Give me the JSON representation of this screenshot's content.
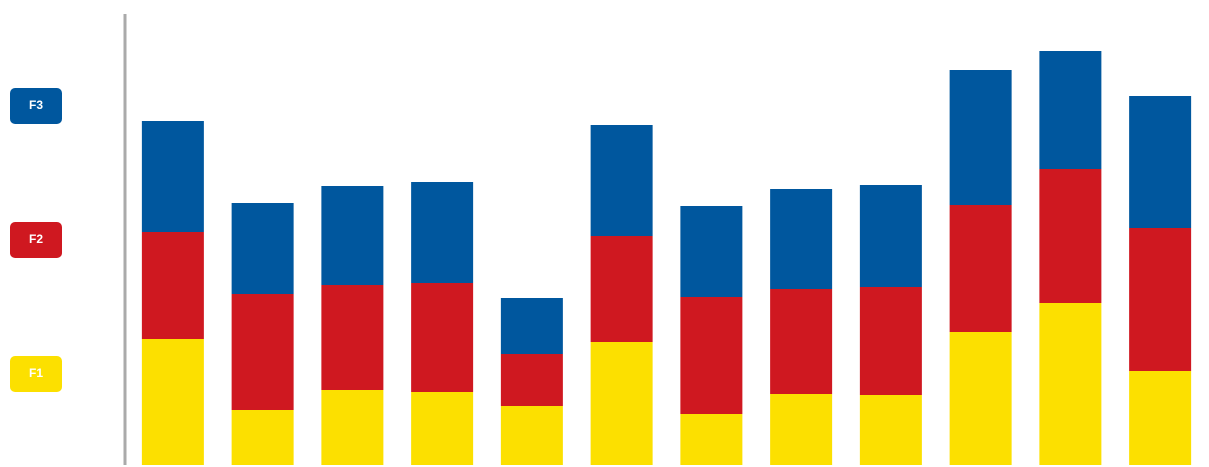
{
  "chart_data": {
    "type": "stacked_bar",
    "categories": [
      null,
      null,
      null,
      null,
      null,
      null,
      null,
      null,
      null,
      null,
      null,
      null
    ],
    "series": [
      {
        "name": "F1",
        "color": "#fce000",
        "values": [
          126,
          55,
          75,
          73,
          59,
          123,
          51,
          71,
          70,
          133,
          162,
          94
        ]
      },
      {
        "name": "F2",
        "color": "#cf1820",
        "values": [
          107,
          116,
          105,
          109,
          52,
          106,
          117,
          105,
          108,
          127,
          134,
          143
        ]
      },
      {
        "name": "F3",
        "color": "#00579e",
        "values": [
          111,
          91,
          99,
          101,
          56,
          111,
          91,
          100,
          102,
          135,
          118,
          132
        ]
      }
    ],
    "ylim": [
      0,
      451
    ]
  }
}
